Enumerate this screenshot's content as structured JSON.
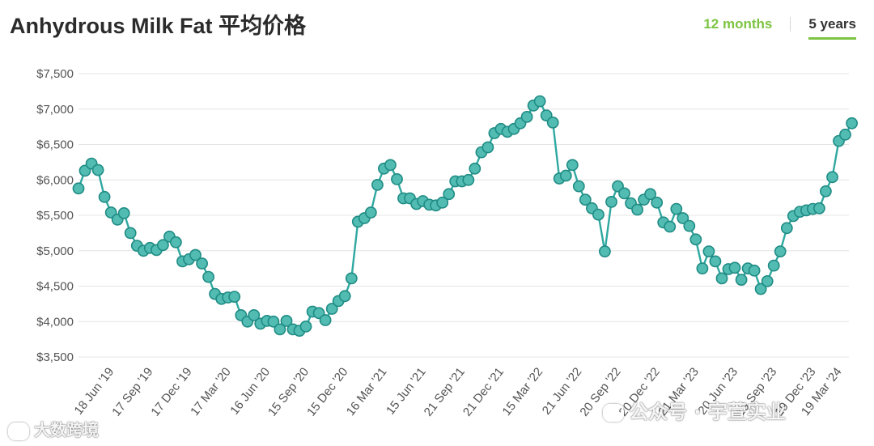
{
  "title": "Anhydrous Milk Fat 平均价格",
  "tabs": [
    {
      "label": "12 months",
      "active": false
    },
    {
      "label": "5 years",
      "active": true
    }
  ],
  "colors": {
    "line": "#2fa8a0",
    "marker": "#52bcb3",
    "accent": "#7cc442",
    "grid": "#e4e4e4"
  },
  "watermarks": {
    "left": "大数跨境",
    "right": "公众号 · 宇萱实业"
  },
  "chart_data": {
    "type": "line",
    "title": "Anhydrous Milk Fat 平均价格",
    "xlabel": "",
    "ylabel": "",
    "ylim": [
      3500,
      7500
    ],
    "yticks": [
      {
        "value": 3500,
        "label": "$3,500"
      },
      {
        "value": 4000,
        "label": "$4,000"
      },
      {
        "value": 4500,
        "label": "$4,500"
      },
      {
        "value": 5000,
        "label": "$5,000"
      },
      {
        "value": 5500,
        "label": "$5,500"
      },
      {
        "value": 6000,
        "label": "$6,000"
      },
      {
        "value": 6500,
        "label": "$6,500"
      },
      {
        "value": 7000,
        "label": "$7,000"
      },
      {
        "value": 7500,
        "label": "$7,500"
      }
    ],
    "xticks": [
      {
        "index": 5,
        "label": "18 Jun '19"
      },
      {
        "index": 11,
        "label": "17 Sep '19"
      },
      {
        "index": 17,
        "label": "17 Dec '19"
      },
      {
        "index": 23,
        "label": "17 Mar '20"
      },
      {
        "index": 29,
        "label": "16 Jun '20"
      },
      {
        "index": 35,
        "label": "15 Sep '20"
      },
      {
        "index": 41,
        "label": "15 Dec '20"
      },
      {
        "index": 47,
        "label": "16 Mar '21"
      },
      {
        "index": 53,
        "label": "15 Jun '21"
      },
      {
        "index": 59,
        "label": "21 Sep '21"
      },
      {
        "index": 65,
        "label": "21 Dec '21"
      },
      {
        "index": 71,
        "label": "15 Mar '22"
      },
      {
        "index": 77,
        "label": "21 Jun '22"
      },
      {
        "index": 83,
        "label": "20 Sep '22"
      },
      {
        "index": 89,
        "label": "20 Dec '22"
      },
      {
        "index": 95,
        "label": "21 Mar '23"
      },
      {
        "index": 101,
        "label": "20 Jun '23"
      },
      {
        "index": 107,
        "label": "19 Sep '23"
      },
      {
        "index": 113,
        "label": "19 Dec '23"
      },
      {
        "index": 117,
        "label": "19 Mar '24"
      }
    ],
    "grid": true,
    "legend": "none",
    "series": [
      {
        "values": [
          5880,
          6130,
          6230,
          6140,
          5760,
          5540,
          5440,
          5530,
          5250,
          5070,
          5000,
          5040,
          5010,
          5080,
          5200,
          5120,
          4850,
          4880,
          4940,
          4820,
          4630,
          4390,
          4320,
          4340,
          4350,
          4090,
          4000,
          4090,
          3970,
          4010,
          4000,
          3890,
          4010,
          3890,
          3870,
          3930,
          4140,
          4120,
          4020,
          4180,
          4290,
          4360,
          4610,
          5410,
          5460,
          5540,
          5930,
          6160,
          6210,
          6010,
          5740,
          5740,
          5660,
          5700,
          5650,
          5640,
          5680,
          5800,
          5980,
          5980,
          6000,
          6160,
          6390,
          6460,
          6660,
          6720,
          6680,
          6720,
          6800,
          6890,
          7050,
          7110,
          6910,
          6810,
          6020,
          6060,
          6210,
          5910,
          5720,
          5600,
          5510,
          4990,
          5690,
          5910,
          5810,
          5670,
          5580,
          5720,
          5800,
          5680,
          5400,
          5340,
          5590,
          5460,
          5350,
          5160,
          4750,
          4990,
          4850,
          4610,
          4740,
          4760,
          4590,
          4750,
          4720,
          4460,
          4570,
          4790,
          4990,
          5320,
          5490,
          5550,
          5570,
          5590,
          5600,
          5840,
          6040,
          6550,
          6640,
          6800
        ]
      }
    ]
  }
}
